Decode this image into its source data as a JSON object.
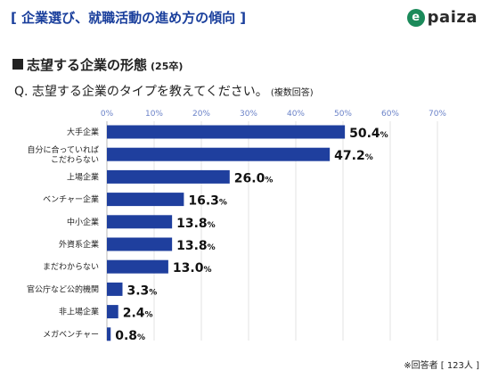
{
  "header": {
    "title": "[ 企業選び、就職活動の進め方の傾向 ]",
    "logo_mark": "e",
    "logo_text": "paiza"
  },
  "section": {
    "title": "志望する企業の形態",
    "subtitle": "(25卒)"
  },
  "question": {
    "text": "Q. 志望する企業のタイプを教えてください。",
    "note": "(複数回答)"
  },
  "footnote": "※回答者 [ 123人 ]",
  "colors": {
    "bar": "#1f3f9e",
    "axis": "#6a82c8",
    "grid": "#e3e3e3"
  },
  "chart_data": {
    "type": "bar",
    "orientation": "horizontal",
    "categories": [
      [
        "大手企業"
      ],
      [
        "自分に合っていれば",
        "こだわらない"
      ],
      [
        "上場企業"
      ],
      [
        "ベンチャー企業"
      ],
      [
        "中小企業"
      ],
      [
        "外資系企業"
      ],
      [
        "まだわからない"
      ],
      [
        "官公庁など公的機関"
      ],
      [
        "非上場企業"
      ],
      [
        "メガベンチャー"
      ]
    ],
    "values": [
      50.4,
      47.2,
      26.0,
      16.3,
      13.8,
      13.8,
      13.0,
      3.3,
      2.4,
      0.8
    ],
    "value_labels": [
      "50.4",
      "47.2",
      "26.0",
      "16.3",
      "13.8",
      "13.8",
      "13.0",
      "3.3",
      "2.4",
      "0.8"
    ],
    "unit": "%",
    "xlim": [
      0,
      70
    ],
    "ticks": [
      0,
      10,
      20,
      30,
      40,
      50,
      60,
      70
    ],
    "tick_labels": [
      "0%",
      "10%",
      "20%",
      "30%",
      "40%",
      "50%",
      "60%",
      "70%"
    ],
    "grid": true
  }
}
